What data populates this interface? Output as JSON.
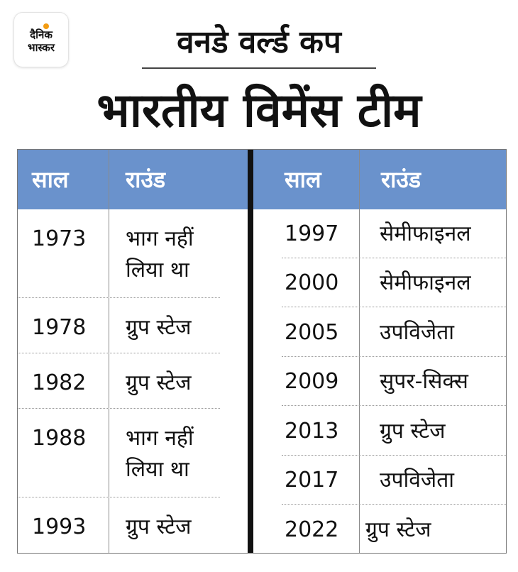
{
  "logo": {
    "line1": "दैनिक",
    "line2": "भास्कर"
  },
  "subtitle": "वनडे वर्ल्ड कप",
  "title": "भारतीय विमेंस टीम",
  "headers": {
    "year": "साल",
    "round": "राउंड"
  },
  "left_rows": [
    {
      "year": "1973",
      "round": [
        "भाग नहीं",
        "लिया था"
      ]
    },
    {
      "year": "1978",
      "round": [
        "ग्रुप स्टेज"
      ]
    },
    {
      "year": "1982",
      "round": [
        "ग्रुप स्टेज"
      ]
    },
    {
      "year": "1988",
      "round": [
        "भाग नहीं",
        "लिया था"
      ]
    },
    {
      "year": "1993",
      "round": [
        "ग्रुप स्टेज"
      ]
    }
  ],
  "right_rows": [
    {
      "year": "1997",
      "round": "सेमीफाइनल"
    },
    {
      "year": "2000",
      "round": "सेमीफाइनल"
    },
    {
      "year": "2005",
      "round": "उपविजेता"
    },
    {
      "year": "2009",
      "round": "सुपर-सिक्स"
    },
    {
      "year": "2013",
      "round": "ग्रुप स्टेज"
    },
    {
      "year": "2017",
      "round": "उपविजेता"
    },
    {
      "year": "2022",
      "round": "ग्रुप स्टेज"
    }
  ]
}
